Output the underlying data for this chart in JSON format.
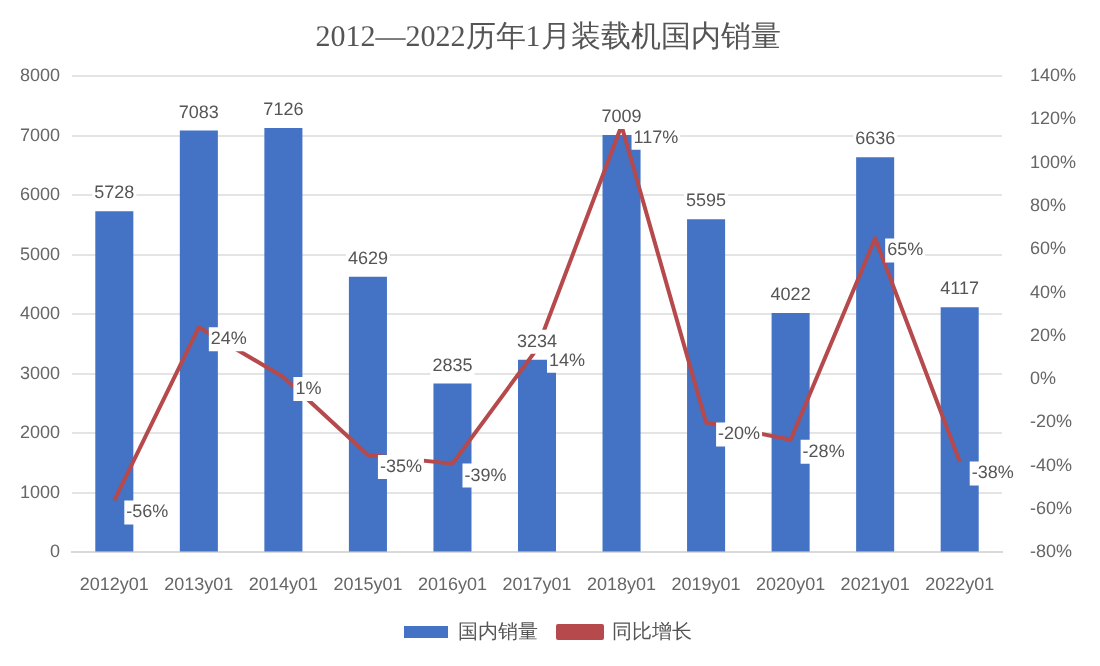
{
  "chart_data": {
    "type": "bar",
    "title": "2012—2022历年1月装载机国内销量",
    "categories": [
      "2012y01",
      "2013y01",
      "2014y01",
      "2015y01",
      "2016y01",
      "2017y01",
      "2018y01",
      "2019y01",
      "2020y01",
      "2021y01",
      "2022y01"
    ],
    "series": [
      {
        "name": "国内销量",
        "color": "#4472c4",
        "values": [
          5728,
          7083,
          7126,
          4629,
          2835,
          3234,
          7009,
          5595,
          4022,
          6636,
          4117
        ],
        "value_labels": [
          "5728",
          "7083",
          "7126",
          "4629",
          "2835",
          "3234",
          "7009",
          "5595",
          "4022",
          "6636",
          "4117"
        ]
      },
      {
        "name": "同比增长",
        "type": "line",
        "axis": "y2",
        "color": "#b5494b",
        "values": [
          -56,
          24,
          1,
          -35,
          -39,
          14,
          117,
          -20,
          -28,
          65,
          -38
        ],
        "value_labels": [
          "-56%",
          "24%",
          "1%",
          "-35%",
          "-39%",
          "14%",
          "117%",
          "-20%",
          "-28%",
          "65%",
          "-38%"
        ]
      }
    ],
    "ylim": [
      0,
      8000
    ],
    "yticks": [
      0,
      1000,
      2000,
      3000,
      4000,
      5000,
      6000,
      7000,
      8000
    ],
    "y2lim": [
      -80,
      140
    ],
    "y2ticks": [
      {
        "value": -80,
        "label": "-80%"
      },
      {
        "value": -60,
        "label": "-60%"
      },
      {
        "value": -40,
        "label": "-40%"
      },
      {
        "value": -20,
        "label": "-20%"
      },
      {
        "value": 0,
        "label": "0%"
      },
      {
        "value": 20,
        "label": "20%"
      },
      {
        "value": 40,
        "label": "40%"
      },
      {
        "value": 60,
        "label": "60%"
      },
      {
        "value": 80,
        "label": "80%"
      },
      {
        "value": 100,
        "label": "100%"
      },
      {
        "value": 120,
        "label": "120%"
      },
      {
        "value": 140,
        "label": "140%"
      }
    ],
    "grid": "y",
    "legend": "bottom",
    "marker": "none",
    "line_style": "solid"
  }
}
